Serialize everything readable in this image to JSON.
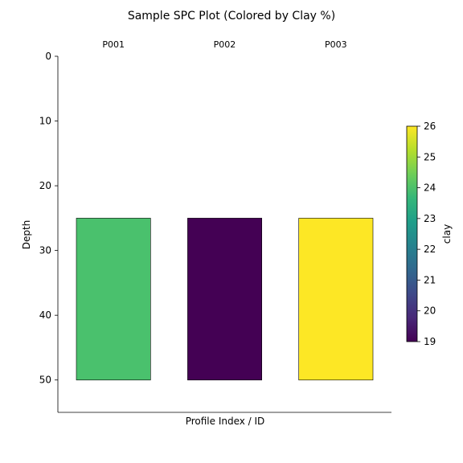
{
  "chart_data": {
    "type": "bar",
    "title": "Sample SPC Plot (Colored by Clay %)",
    "xlabel": "Profile Index / ID",
    "ylabel": "Depth",
    "ylim": [
      55,
      0
    ],
    "yticks": [
      0,
      10,
      20,
      30,
      40,
      50
    ],
    "grid": false,
    "profiles": [
      {
        "id": "P001",
        "top": 25,
        "bottom": 50,
        "clay": 24,
        "color": "#4ac16d"
      },
      {
        "id": "P002",
        "top": 25,
        "bottom": 50,
        "clay": 19,
        "color": "#440154"
      },
      {
        "id": "P003",
        "top": 25,
        "bottom": 50,
        "clay": 26,
        "color": "#fde725"
      }
    ],
    "colorbar": {
      "label": "clay",
      "min": 19,
      "max": 26,
      "ticks": [
        19,
        20,
        21,
        22,
        23,
        24,
        25,
        26
      ],
      "colormap": "viridis",
      "stops": [
        "#440154",
        "#482878",
        "#3e4989",
        "#31688e",
        "#26828e",
        "#1f9e89",
        "#35b779",
        "#6ece58",
        "#b5de2b",
        "#fde725"
      ]
    }
  }
}
